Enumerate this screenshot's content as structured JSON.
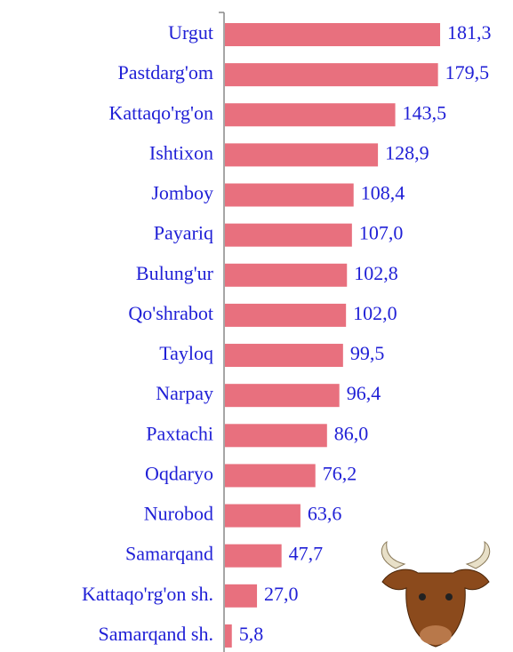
{
  "chart_data": {
    "type": "bar",
    "orientation": "horizontal",
    "categories": [
      "Urgut",
      "Pastdarg'om",
      "Kattaqo'rg'on",
      "Ishtixon",
      "Jomboy",
      "Payariq",
      "Bulung'ur",
      "Qo'shrabot",
      "Tayloq",
      "Narpay",
      "Paxtachi",
      "Oqdaryo",
      "Nurobod",
      "Samarqand",
      "Kattaqo'rg'on sh.",
      "Samarqand sh."
    ],
    "values": [
      181.3,
      179.5,
      143.5,
      128.9,
      108.4,
      107.0,
      102.8,
      102.0,
      99.5,
      96.4,
      86.0,
      76.2,
      63.6,
      47.7,
      27.0,
      5.8
    ],
    "value_labels": [
      "181,3",
      "179,5",
      "143,5",
      "128,9",
      "108,4",
      "107,0",
      "102,8",
      "102,0",
      "99,5",
      "96,4",
      "86,0",
      "76,2",
      "63,6",
      "47,7",
      "27,0",
      "5,8"
    ],
    "color": "#e8707e"
  }
}
